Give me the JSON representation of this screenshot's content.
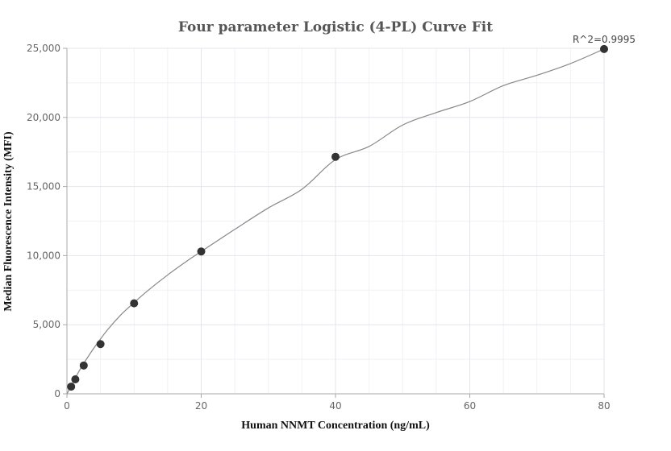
{
  "chart_data": {
    "type": "scatter",
    "title": "Four parameter Logistic (4-PL) Curve Fit",
    "xlabel": "Human NNMT Concentration (ng/mL)",
    "ylabel": "Median Fluorescence Intensity (MFI)",
    "xlim": [
      0,
      80
    ],
    "ylim": [
      0,
      25000
    ],
    "x_ticks": [
      0,
      20,
      40,
      60,
      80
    ],
    "y_ticks": [
      0,
      5000,
      10000,
      15000,
      20000,
      25000
    ],
    "x_tick_labels": [
      "0",
      "20",
      "40",
      "60",
      "80"
    ],
    "y_tick_labels": [
      "0",
      "5,000",
      "10,000",
      "15,000",
      "20,000",
      "25,000"
    ],
    "grid": true,
    "annotation": "R^2=0.9995",
    "series": [
      {
        "points": [
          {
            "x": 0.625,
            "y": 520
          },
          {
            "x": 1.25,
            "y": 1050
          },
          {
            "x": 2.5,
            "y": 2050
          },
          {
            "x": 5,
            "y": 3600
          },
          {
            "x": 10,
            "y": 6550
          },
          {
            "x": 20,
            "y": 10300
          },
          {
            "x": 40,
            "y": 17150
          },
          {
            "x": 80,
            "y": 24950
          }
        ],
        "marker_color": "#333333"
      }
    ],
    "fit_curve": {
      "x": [
        0,
        2,
        4,
        6,
        8,
        10,
        12,
        15,
        18,
        20,
        25,
        30,
        35,
        40,
        45,
        50,
        55,
        60,
        65,
        70,
        75,
        80
      ],
      "y": [
        0,
        1800,
        3300,
        4600,
        5700,
        6600,
        7450,
        8600,
        9650,
        10300,
        11900,
        13450,
        14800,
        16950,
        17900,
        19450,
        20350,
        21150,
        22300,
        23050,
        23900,
        24950
      ],
      "color": "#888888"
    }
  }
}
